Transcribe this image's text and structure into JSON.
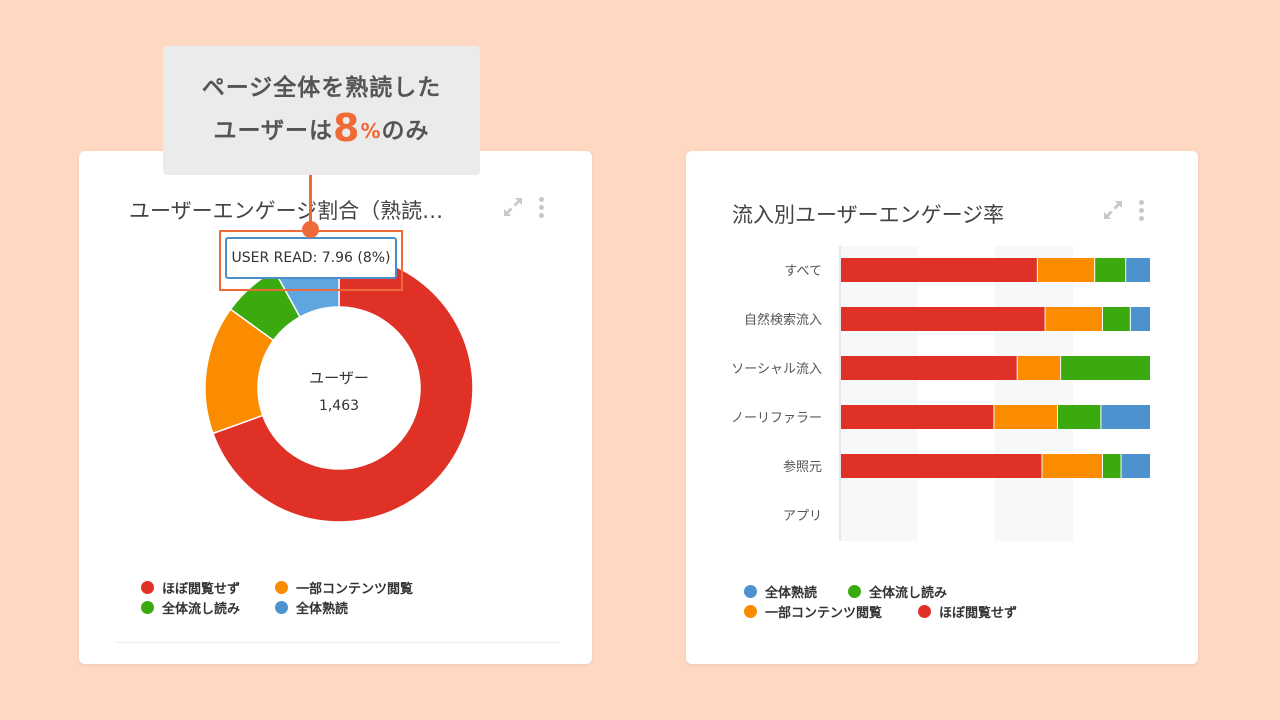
{
  "callout": {
    "line1": "ページ全体を熟読した",
    "line2_prefix": "ユーザーは",
    "line2_number": "8",
    "line2_unit": "%",
    "line2_suffix": "のみ"
  },
  "left_card": {
    "title": "ユーザーエンゲージ割合（熟読…",
    "center_label": "ユーザー",
    "center_value": "1,463",
    "tooltip": "USER READ: 7.96 (8%)"
  },
  "right_card": {
    "title": "流入別ユーザーエンゲージ率"
  },
  "colors": {
    "red": "#e03127",
    "orange": "#fb8c00",
    "green": "#3aaa0e",
    "blue": "#4b92cf",
    "blue_highlight": "#5ea6e0"
  },
  "chart_data": [
    {
      "type": "pie",
      "variant": "donut",
      "categories": [
        "ほぼ閲覧せず",
        "一部コンテンツ閲覧",
        "全体流し読み",
        "全体熟読"
      ],
      "values": [
        69.5,
        15.5,
        7.0,
        8.0
      ],
      "center_label": "ユーザー",
      "center_value": "1,463",
      "highlighted": "全体熟読",
      "tooltip": "USER READ: 7.96 (8%)",
      "legend": {
        "placement": "bottom",
        "items": [
          "ほぼ閲覧せず",
          "一部コンテンツ閲覧",
          "全体流し読み",
          "全体熟読"
        ]
      }
    },
    {
      "type": "bar",
      "orientation": "horizontal",
      "stacked": true,
      "percent": true,
      "categories": [
        "すべて",
        "自然検索流入",
        "ソーシャル流入",
        "ノーリファラー",
        "参照元",
        "アプリ"
      ],
      "series": [
        {
          "name": "ほぼ閲覧せず",
          "color_key": "red",
          "values": [
            63.5,
            66,
            57,
            49.5,
            65,
            0
          ]
        },
        {
          "name": "一部コンテンツ閲覧",
          "color_key": "orange",
          "values": [
            18.5,
            18.5,
            14,
            20.5,
            19.5,
            0
          ]
        },
        {
          "name": "全体流し読み",
          "color_key": "green",
          "values": [
            10,
            9,
            29,
            14,
            6,
            0
          ]
        },
        {
          "name": "全体熟読",
          "color_key": "blue",
          "values": [
            8,
            6.5,
            0,
            16,
            9.5,
            0
          ]
        }
      ],
      "legend": {
        "placement": "bottom",
        "items": [
          "全体熟読",
          "全体流し読み",
          "一部コンテンツ閲覧",
          "ほぼ閲覧せず"
        ]
      }
    }
  ]
}
